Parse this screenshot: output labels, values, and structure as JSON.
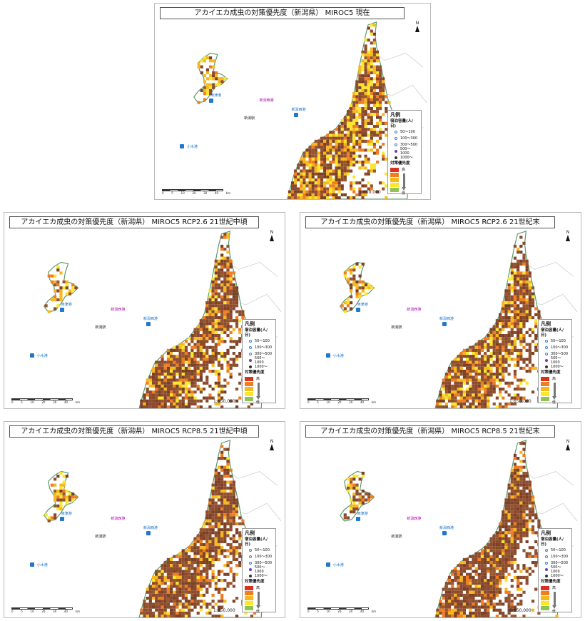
{
  "panels": [
    {
      "title": "アカイエカ成虫の対策優先度（新潟県） MIROC5 現在"
    },
    {
      "title": "アカイエカ成虫の対策優先度（新潟県） MIROC5 RCP2.6 21世紀中頃"
    },
    {
      "title": "アカイエカ成虫の対策優先度（新潟県） MIROC5 RCP2.6 21世紀末"
    },
    {
      "title": "アカイエカ成虫の対策優先度（新潟県） MIROC5 RCP8.5 21世紀中頃"
    },
    {
      "title": "アカイエカ成虫の対策優先度（新潟県） MIROC5 RCP8.5 21世紀末"
    }
  ],
  "legend": {
    "title": "凡例",
    "capacity_title": "宿泊容量(人/日)",
    "capacity_items": [
      "50～100",
      "100～300",
      "300～500",
      "500～1000",
      "1000～"
    ],
    "priority_title": "対策優先度",
    "high": "高",
    "low": "低",
    "priority_colors": [
      "#d8321e",
      "#f07d1e",
      "#f6b81a",
      "#fbe62a",
      "#8dc453"
    ]
  },
  "map_labels": {
    "niigata_port": "新潟西港",
    "niigata_station": "新潟駅",
    "ryotsu_port": "両津港",
    "ogi_port": "小木港",
    "north": "N"
  },
  "scale": {
    "ratio": "1:650,000",
    "ticks": [
      "0",
      "5",
      "10",
      "20",
      "30",
      "40"
    ],
    "unit": "km"
  }
}
